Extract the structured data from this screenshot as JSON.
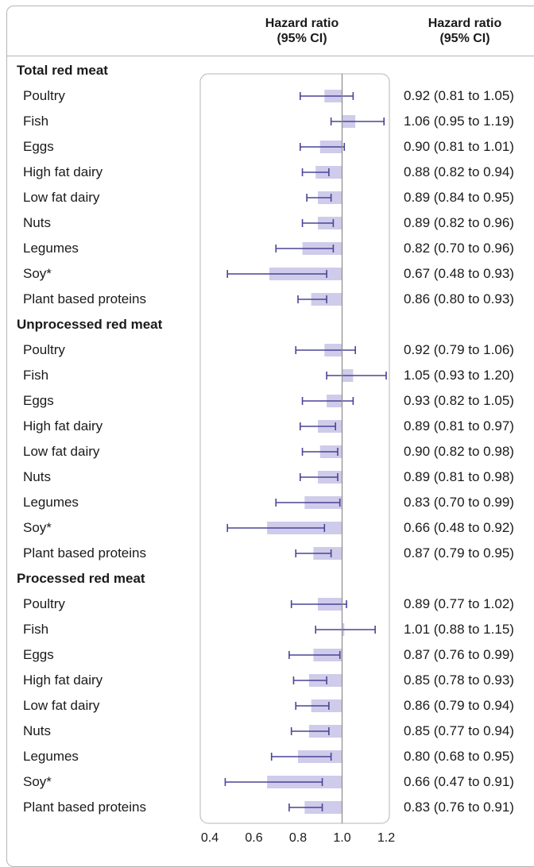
{
  "header": {
    "plot_col_title": "Hazard ratio\n(95% CI)",
    "estimate_col_title": "Hazard ratio\n(95% CI)"
  },
  "colors": {
    "bar_fill": "#cfcbea",
    "ci_line": "#4a4596",
    "reference_line": "#8c8c8c",
    "frame": "#b5b5b5"
  },
  "chart_data": {
    "type": "forest",
    "xlim": [
      0.4,
      1.2
    ],
    "xticks": [
      "0.4",
      "0.6",
      "0.8",
      "1.0",
      "1.2"
    ],
    "reference_value": 1.0,
    "groups": [
      {
        "label": "Total red meat",
        "rows": [
          {
            "label": "Poultry",
            "hr": 0.92,
            "lo": 0.81,
            "hi": 1.05,
            "text": "0.92 (0.81 to 1.05)"
          },
          {
            "label": "Fish",
            "hr": 1.06,
            "lo": 0.95,
            "hi": 1.19,
            "text": "1.06 (0.95 to 1.19)"
          },
          {
            "label": "Eggs",
            "hr": 0.9,
            "lo": 0.81,
            "hi": 1.01,
            "text": "0.90 (0.81 to 1.01)"
          },
          {
            "label": "High fat dairy",
            "hr": 0.88,
            "lo": 0.82,
            "hi": 0.94,
            "text": "0.88 (0.82 to 0.94)"
          },
          {
            "label": "Low fat dairy",
            "hr": 0.89,
            "lo": 0.84,
            "hi": 0.95,
            "text": "0.89 (0.84 to 0.95)"
          },
          {
            "label": "Nuts",
            "hr": 0.89,
            "lo": 0.82,
            "hi": 0.96,
            "text": "0.89 (0.82 to 0.96)"
          },
          {
            "label": "Legumes",
            "hr": 0.82,
            "lo": 0.7,
            "hi": 0.96,
            "text": "0.82 (0.70 to 0.96)"
          },
          {
            "label": "Soy*",
            "hr": 0.67,
            "lo": 0.48,
            "hi": 0.93,
            "text": "0.67 (0.48 to 0.93)"
          },
          {
            "label": "Plant based proteins",
            "hr": 0.86,
            "lo": 0.8,
            "hi": 0.93,
            "text": "0.86 (0.80 to 0.93)"
          }
        ]
      },
      {
        "label": "Unprocessed red meat",
        "rows": [
          {
            "label": "Poultry",
            "hr": 0.92,
            "lo": 0.79,
            "hi": 1.06,
            "text": "0.92 (0.79 to 1.06)"
          },
          {
            "label": "Fish",
            "hr": 1.05,
            "lo": 0.93,
            "hi": 1.2,
            "text": "1.05 (0.93 to 1.20)"
          },
          {
            "label": "Eggs",
            "hr": 0.93,
            "lo": 0.82,
            "hi": 1.05,
            "text": "0.93 (0.82 to 1.05)"
          },
          {
            "label": "High fat dairy",
            "hr": 0.89,
            "lo": 0.81,
            "hi": 0.97,
            "text": "0.89 (0.81 to 0.97)"
          },
          {
            "label": "Low fat dairy",
            "hr": 0.9,
            "lo": 0.82,
            "hi": 0.98,
            "text": "0.90 (0.82 to 0.98)"
          },
          {
            "label": "Nuts",
            "hr": 0.89,
            "lo": 0.81,
            "hi": 0.98,
            "text": "0.89 (0.81 to 0.98)"
          },
          {
            "label": "Legumes",
            "hr": 0.83,
            "lo": 0.7,
            "hi": 0.99,
            "text": "0.83 (0.70 to 0.99)"
          },
          {
            "label": "Soy*",
            "hr": 0.66,
            "lo": 0.48,
            "hi": 0.92,
            "text": "0.66 (0.48 to 0.92)"
          },
          {
            "label": "Plant based proteins",
            "hr": 0.87,
            "lo": 0.79,
            "hi": 0.95,
            "text": "0.87 (0.79 to 0.95)"
          }
        ]
      },
      {
        "label": "Processed red meat",
        "rows": [
          {
            "label": "Poultry",
            "hr": 0.89,
            "lo": 0.77,
            "hi": 1.02,
            "text": "0.89 (0.77 to 1.02)"
          },
          {
            "label": "Fish",
            "hr": 1.01,
            "lo": 0.88,
            "hi": 1.15,
            "text": "1.01 (0.88 to 1.15)"
          },
          {
            "label": "Eggs",
            "hr": 0.87,
            "lo": 0.76,
            "hi": 0.99,
            "text": "0.87 (0.76 to 0.99)"
          },
          {
            "label": "High fat dairy",
            "hr": 0.85,
            "lo": 0.78,
            "hi": 0.93,
            "text": "0.85 (0.78 to 0.93)"
          },
          {
            "label": "Low fat dairy",
            "hr": 0.86,
            "lo": 0.79,
            "hi": 0.94,
            "text": "0.86 (0.79 to 0.94)"
          },
          {
            "label": "Nuts",
            "hr": 0.85,
            "lo": 0.77,
            "hi": 0.94,
            "text": "0.85 (0.77 to 0.94)"
          },
          {
            "label": "Legumes",
            "hr": 0.8,
            "lo": 0.68,
            "hi": 0.95,
            "text": "0.80 (0.68 to 0.95)"
          },
          {
            "label": "Soy*",
            "hr": 0.66,
            "lo": 0.47,
            "hi": 0.91,
            "text": "0.66 (0.47 to 0.91)"
          },
          {
            "label": "Plant based proteins",
            "hr": 0.83,
            "lo": 0.76,
            "hi": 0.91,
            "text": "0.83 (0.76 to 0.91)"
          }
        ]
      }
    ]
  }
}
